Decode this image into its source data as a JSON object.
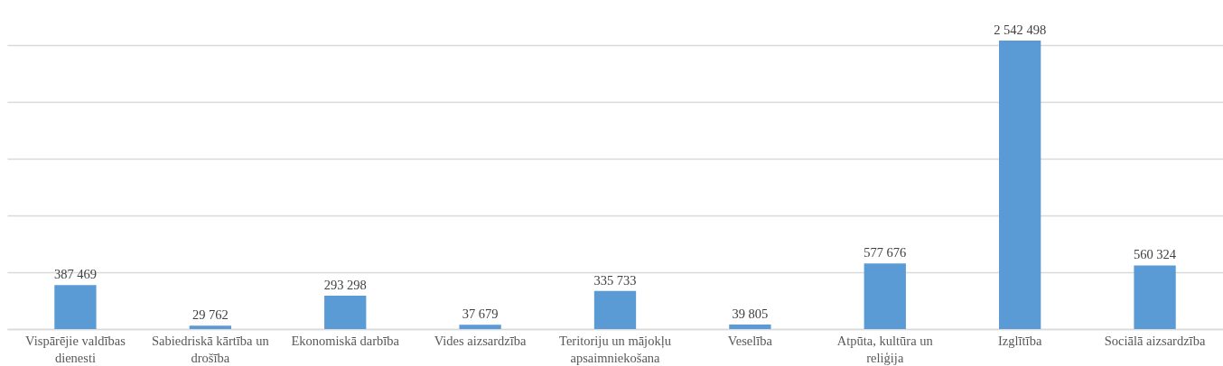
{
  "chart_data": {
    "type": "bar",
    "categories": [
      "Vispārējie valdības dienesti",
      "Sabiedriskā kārtība un drošība",
      "Ekonomiskā darbība",
      "Vides aizsardzība",
      "Teritoriju un mājokļu apsaimniekošana",
      "Veselība",
      "Atpūta, kultūra un reliģija",
      "Izglītība",
      "Sociālā aizsardzība"
    ],
    "values": [
      387469,
      29762,
      293298,
      37679,
      335733,
      39805,
      577676,
      2542498,
      560324
    ],
    "value_labels": [
      "387 469",
      "29 762",
      "293 298",
      "37 679",
      "335 733",
      "39 805",
      "577 676",
      "2 542 498",
      "560 324"
    ],
    "color": "#5b9bd5",
    "ylim": [
      0,
      2900000
    ],
    "yticks": [
      {
        "value": 0,
        "label": null
      },
      {
        "value": 500000,
        "label": null
      },
      {
        "value": 1000000,
        "label": null
      },
      {
        "value": 1500000,
        "label": null
      },
      {
        "value": 2000000,
        "label": null
      },
      {
        "value": 2500000,
        "label": null
      }
    ],
    "grid": "y",
    "tick_labels": "x"
  }
}
